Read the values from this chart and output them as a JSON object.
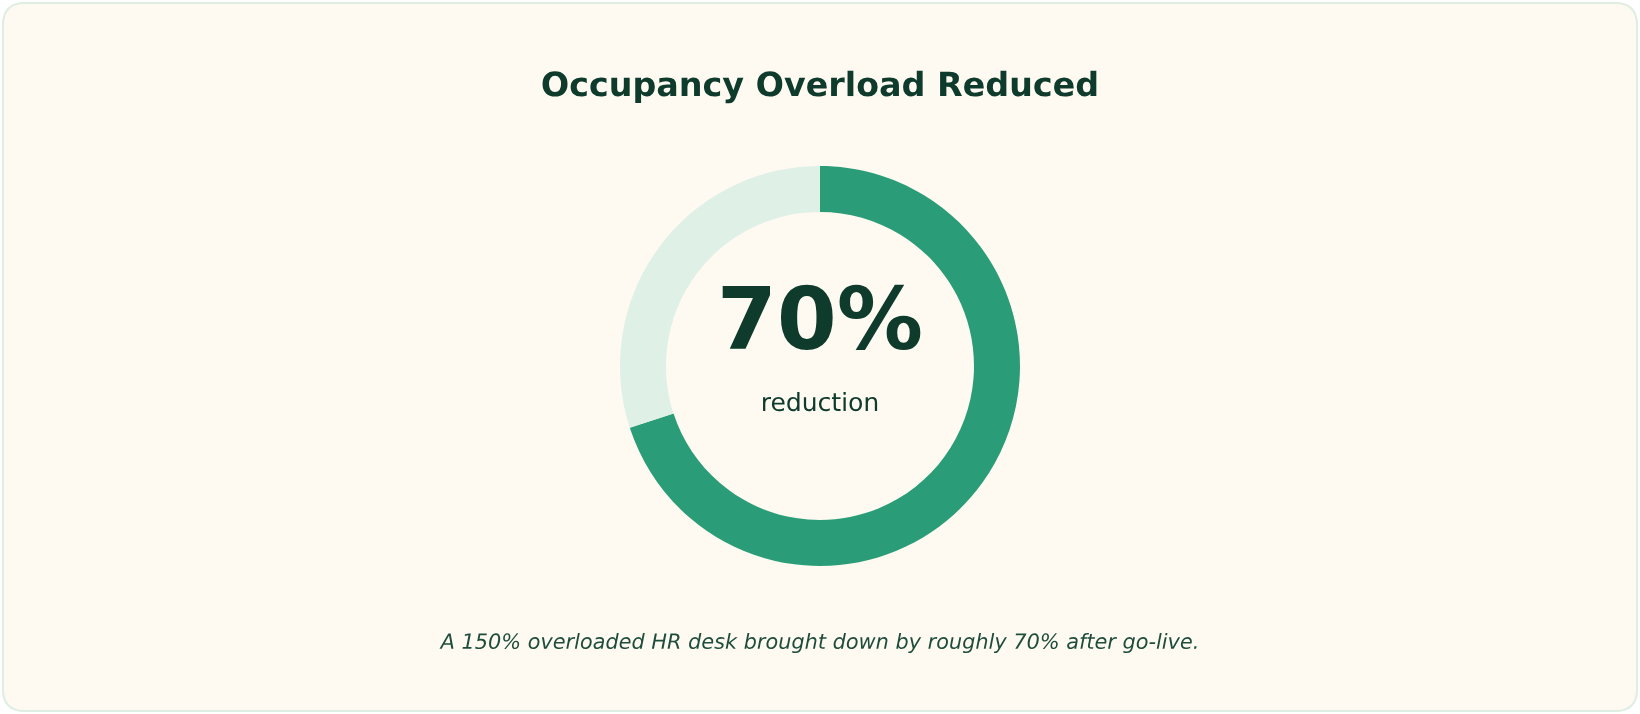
{
  "chart_data": {
    "type": "donut",
    "title": "Occupancy Overload Reduced",
    "categories": [
      "reduction",
      null
    ],
    "values": [
      70,
      30
    ],
    "colors": [
      "#2a9d78",
      "#dff0e6"
    ],
    "value_labels": [
      "70%",
      null
    ],
    "annotations": [
      "A 150% overloaded HR desk brought down by roughly 70% after go-live."
    ]
  }
}
